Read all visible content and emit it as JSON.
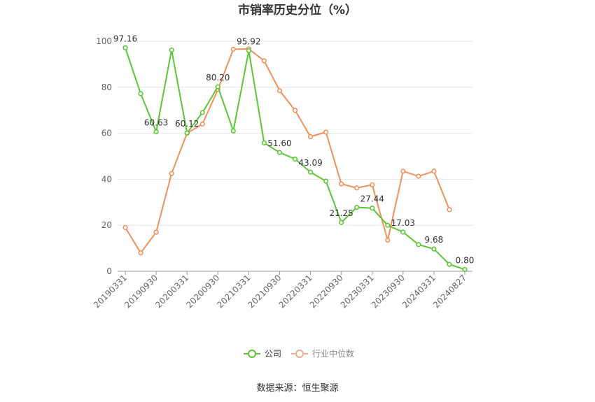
{
  "chart_data": {
    "type": "line",
    "title": "市销率历史分位（%）",
    "categories": [
      "20190331",
      "20190630",
      "20190930",
      "20191231",
      "20200331",
      "20200630",
      "20200930",
      "20201231",
      "20210331",
      "20210630",
      "20210930",
      "20211231",
      "20220331",
      "20220630",
      "20220930",
      "20221231",
      "20230331",
      "20230630",
      "20230930",
      "20231231",
      "20240331",
      "20240630",
      "20240827"
    ],
    "x_tick_labels": [
      "20190331",
      "20190930",
      "20200331",
      "20200930",
      "20210331",
      "20210930",
      "20220331",
      "20220930",
      "20230331",
      "20230930",
      "20240331",
      "20240827"
    ],
    "series": [
      {
        "name": "公司",
        "color": "#5ac832",
        "values": [
          97.16,
          77.2,
          60.63,
          96.2,
          60.12,
          69.0,
          80.2,
          61.0,
          95.92,
          55.8,
          51.6,
          48.8,
          43.09,
          39.2,
          21.25,
          27.8,
          27.44,
          20.0,
          17.03,
          11.6,
          9.68,
          3.0,
          0.8
        ]
      },
      {
        "name": "行业中位数",
        "color": "#f0905a",
        "values": [
          19.0,
          8.0,
          17.0,
          42.5,
          60.0,
          64.0,
          79.0,
          96.5,
          96.7,
          91.5,
          78.5,
          70.0,
          58.5,
          60.5,
          38.0,
          36.2,
          37.6,
          13.5,
          43.5,
          41.3,
          43.5,
          26.8,
          null
        ]
      }
    ],
    "data_labels": [
      {
        "index": 0,
        "text": "97.16"
      },
      {
        "index": 2,
        "text": "60.63"
      },
      {
        "index": 4,
        "text": "60.12"
      },
      {
        "index": 6,
        "text": "80.20"
      },
      {
        "index": 8,
        "text": "95.92"
      },
      {
        "index": 10,
        "text": "51.60"
      },
      {
        "index": 12,
        "text": "43.09"
      },
      {
        "index": 14,
        "text": "21.25"
      },
      {
        "index": 16,
        "text": "27.44"
      },
      {
        "index": 18,
        "text": "17.03"
      },
      {
        "index": 20,
        "text": "9.68"
      },
      {
        "index": 22,
        "text": "0.80"
      }
    ],
    "ylim": [
      0,
      100
    ],
    "y_ticks": [
      0,
      20,
      40,
      60,
      80,
      100
    ],
    "grid": true,
    "legend_position": "bottom-center"
  },
  "footer": {
    "source": "数据来源：恒生聚源"
  }
}
